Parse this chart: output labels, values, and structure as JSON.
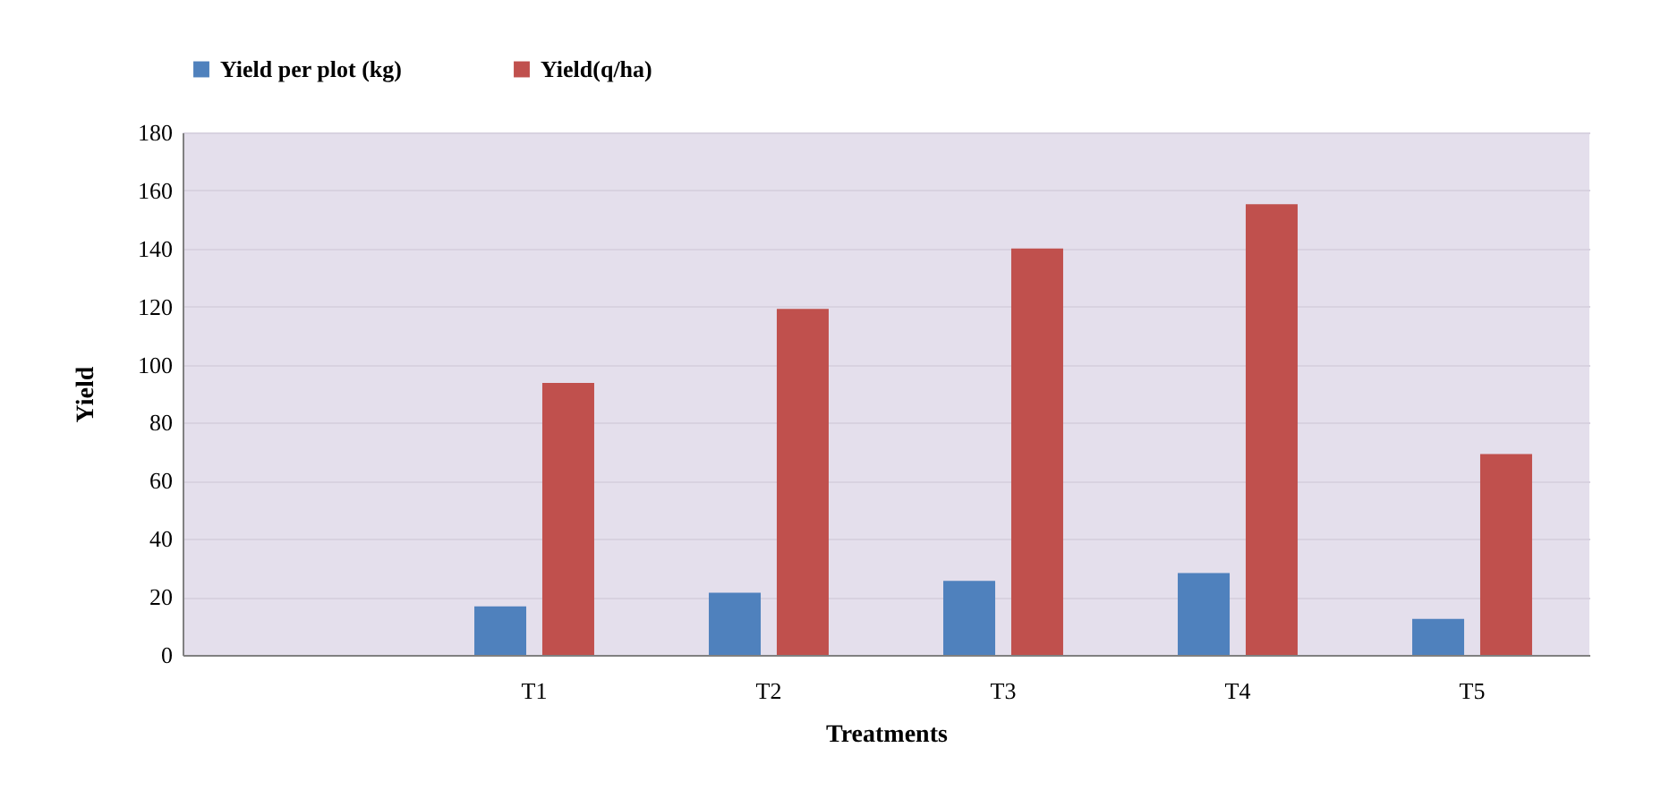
{
  "chart_data": {
    "type": "bar",
    "xlabel": "Treatments",
    "ylabel": "Yield",
    "categories": [
      null,
      "T1",
      "T2",
      "T3",
      "T4",
      "T5"
    ],
    "series": [
      {
        "name": "Yield per plot (kg)",
        "color": "#4f81bd",
        "values": [
          null,
          16.7,
          21.4,
          25.5,
          28.2,
          12.4
        ]
      },
      {
        "name": "Yield(q/ha)",
        "color": "#c0504d",
        "values": [
          null,
          93.7,
          119.2,
          140,
          155.3,
          69.2
        ]
      }
    ],
    "ylim": [
      0,
      180
    ],
    "yticks": [
      0,
      20,
      40,
      60,
      80,
      100,
      120,
      140,
      160,
      180
    ],
    "grid": "y",
    "legend": "top"
  }
}
